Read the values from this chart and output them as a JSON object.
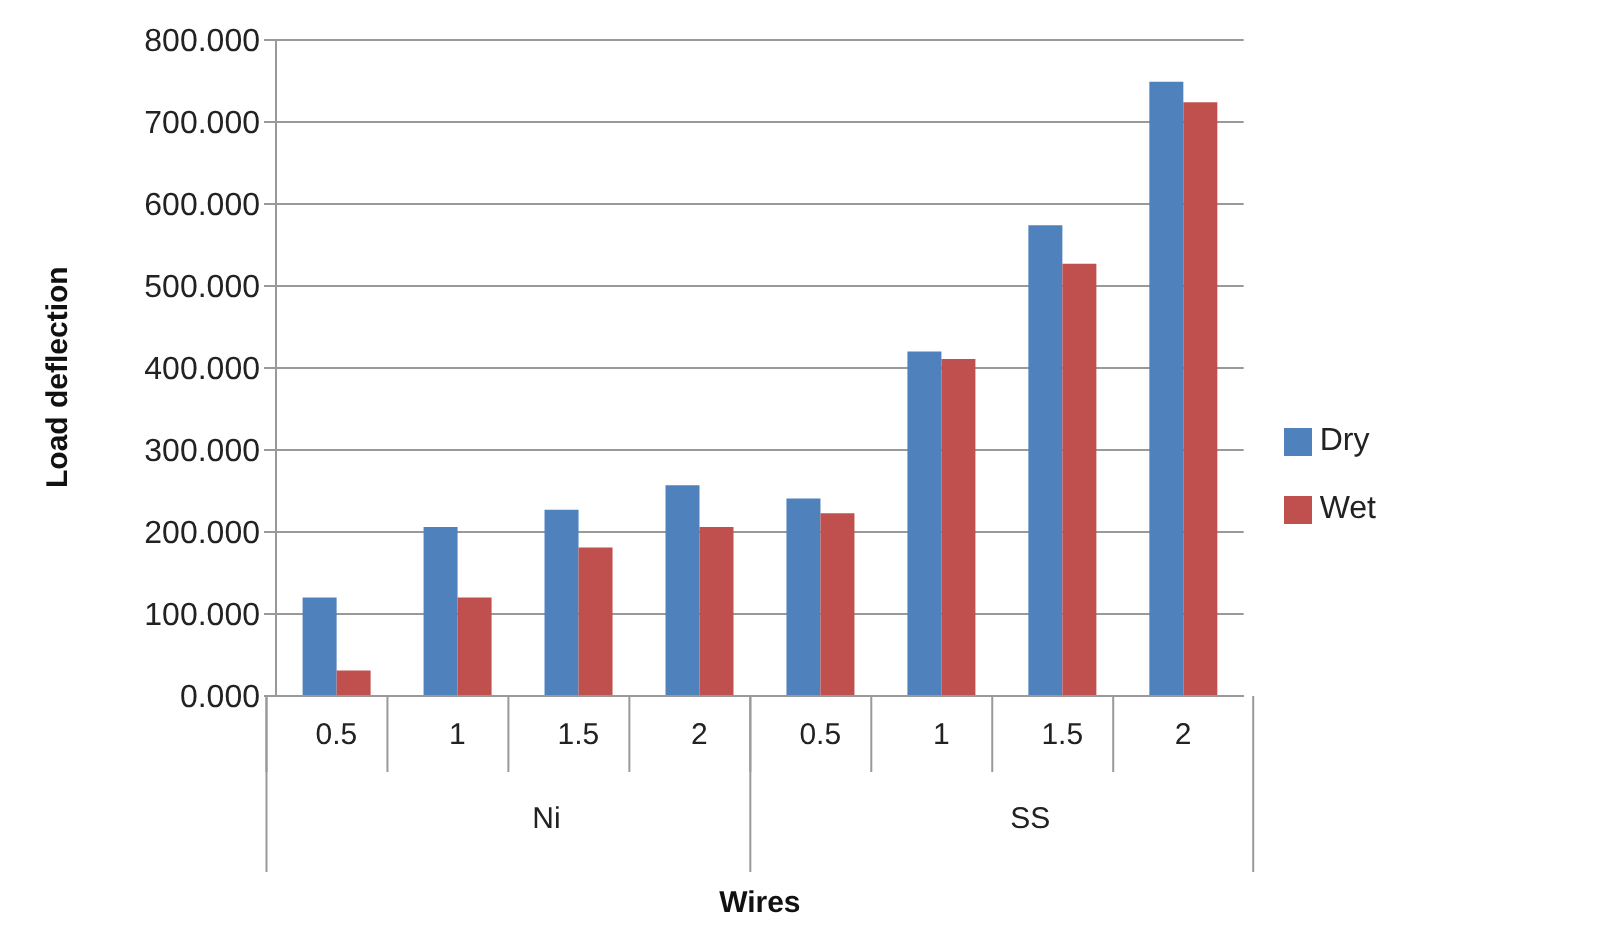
{
  "chart_data": {
    "type": "bar",
    "xlabel": "Wires",
    "ylabel": "Load deflection",
    "categories": [
      "0.5",
      "1",
      "1.5",
      "2",
      "0.5",
      "1",
      "1.5",
      "2"
    ],
    "annotations": [
      "Ni",
      "SS"
    ],
    "series": [
      {
        "name": "Dry",
        "color": "#4f81bd",
        "values": [
          120,
          206,
          227,
          257,
          241,
          420,
          574,
          749
        ]
      },
      {
        "name": "Wet",
        "color": "#c0504d",
        "values": [
          31,
          120,
          181,
          206,
          223,
          411,
          527,
          724
        ]
      }
    ],
    "ylim": [
      0,
      800
    ],
    "yticks": [
      {
        "value": 0,
        "label": "0.000"
      },
      {
        "value": 100,
        "label": "100.000"
      },
      {
        "value": 200,
        "label": "200.000"
      },
      {
        "value": 300,
        "label": "300.000"
      },
      {
        "value": 400,
        "label": "400.000"
      },
      {
        "value": 500,
        "label": "500.000"
      },
      {
        "value": 600,
        "label": "600.000"
      },
      {
        "value": 700,
        "label": "700.000"
      },
      {
        "value": 800,
        "label": "800.000"
      }
    ],
    "grid": "y",
    "legend": "right"
  }
}
